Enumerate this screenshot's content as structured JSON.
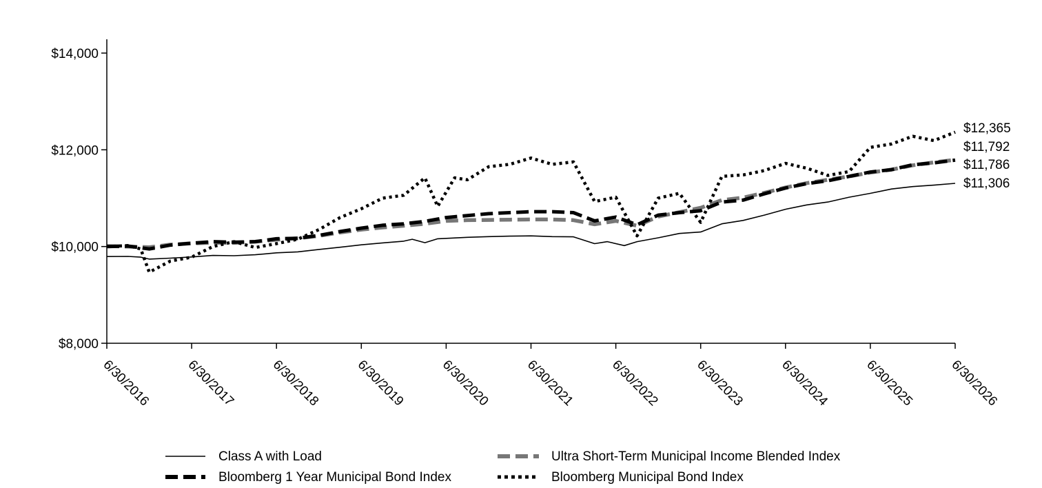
{
  "chart_data": {
    "type": "line",
    "title": "",
    "xlabel": "",
    "ylabel": "",
    "ylim": [
      8000,
      14000
    ],
    "yticks": [
      "$8,000",
      "$10,000",
      "$12,000",
      "$14,000"
    ],
    "ytick_values": [
      8000,
      10000,
      12000,
      14000
    ],
    "xticks": [
      "6/30/2016",
      "6/30/2017",
      "6/30/2018",
      "6/30/2019",
      "6/30/2020",
      "6/30/2021",
      "6/30/2022",
      "6/30/2023",
      "6/30/2024",
      "6/30/2025",
      "6/30/2026"
    ],
    "xlim": [
      2016.5,
      2026.5
    ],
    "grid": false,
    "legend_position": "bottom",
    "series": [
      {
        "name": "Class A with Load",
        "style": "solid-thin",
        "color": "#000000",
        "end_label": "$11,306",
        "points": [
          [
            2016.5,
            9793
          ],
          [
            2016.75,
            9796
          ],
          [
            2016.9,
            9780
          ],
          [
            2017.0,
            9740
          ],
          [
            2017.25,
            9760
          ],
          [
            2017.5,
            9785
          ],
          [
            2017.75,
            9815
          ],
          [
            2018.0,
            9810
          ],
          [
            2018.25,
            9830
          ],
          [
            2018.5,
            9870
          ],
          [
            2018.75,
            9890
          ],
          [
            2019.0,
            9940
          ],
          [
            2019.25,
            9985
          ],
          [
            2019.5,
            10035
          ],
          [
            2019.75,
            10075
          ],
          [
            2020.0,
            10110
          ],
          [
            2020.1,
            10150
          ],
          [
            2020.25,
            10080
          ],
          [
            2020.4,
            10160
          ],
          [
            2020.75,
            10190
          ],
          [
            2021.0,
            10205
          ],
          [
            2021.25,
            10215
          ],
          [
            2021.5,
            10220
          ],
          [
            2021.75,
            10205
          ],
          [
            2022.0,
            10200
          ],
          [
            2022.25,
            10060
          ],
          [
            2022.4,
            10100
          ],
          [
            2022.6,
            10020
          ],
          [
            2022.75,
            10100
          ],
          [
            2023.0,
            10180
          ],
          [
            2023.25,
            10270
          ],
          [
            2023.5,
            10300
          ],
          [
            2023.75,
            10470
          ],
          [
            2024.0,
            10540
          ],
          [
            2024.25,
            10650
          ],
          [
            2024.5,
            10770
          ],
          [
            2024.75,
            10860
          ],
          [
            2025.0,
            10920
          ],
          [
            2025.25,
            11020
          ],
          [
            2025.5,
            11100
          ],
          [
            2025.75,
            11190
          ],
          [
            2026.0,
            11240
          ],
          [
            2026.25,
            11270
          ],
          [
            2026.5,
            11306
          ]
        ]
      },
      {
        "name": "Ultra Short-Term Municipal Income Blended Index",
        "style": "dashed-gray",
        "color": "#777777",
        "end_label": "$11,792",
        "points": [
          [
            2016.5,
            10010
          ],
          [
            2016.75,
            10000
          ],
          [
            2017.0,
            9985
          ],
          [
            2017.25,
            10040
          ],
          [
            2017.5,
            10065
          ],
          [
            2017.75,
            10080
          ],
          [
            2018.0,
            10075
          ],
          [
            2018.25,
            10100
          ],
          [
            2018.5,
            10140
          ],
          [
            2018.75,
            10170
          ],
          [
            2019.0,
            10220
          ],
          [
            2019.25,
            10290
          ],
          [
            2019.5,
            10350
          ],
          [
            2019.75,
            10395
          ],
          [
            2020.0,
            10430
          ],
          [
            2020.25,
            10470
          ],
          [
            2020.5,
            10530
          ],
          [
            2020.75,
            10545
          ],
          [
            2021.0,
            10550
          ],
          [
            2021.25,
            10555
          ],
          [
            2021.5,
            10560
          ],
          [
            2021.75,
            10560
          ],
          [
            2022.0,
            10545
          ],
          [
            2022.25,
            10460
          ],
          [
            2022.5,
            10530
          ],
          [
            2022.75,
            10430
          ],
          [
            2023.0,
            10620
          ],
          [
            2023.25,
            10710
          ],
          [
            2023.5,
            10800
          ],
          [
            2023.75,
            10960
          ],
          [
            2024.0,
            11010
          ],
          [
            2024.25,
            11110
          ],
          [
            2024.5,
            11220
          ],
          [
            2024.75,
            11310
          ],
          [
            2025.0,
            11380
          ],
          [
            2025.25,
            11450
          ],
          [
            2025.5,
            11530
          ],
          [
            2025.75,
            11590
          ],
          [
            2026.0,
            11680
          ],
          [
            2026.25,
            11740
          ],
          [
            2026.5,
            11792
          ]
        ]
      },
      {
        "name": "Bloomberg 1 Year Municipal Bond Index",
        "style": "dashed-black",
        "color": "#000000",
        "end_label": "$11,786",
        "points": [
          [
            2016.5,
            10000
          ],
          [
            2016.75,
            10010
          ],
          [
            2017.0,
            9950
          ],
          [
            2017.25,
            10030
          ],
          [
            2017.5,
            10070
          ],
          [
            2017.75,
            10100
          ],
          [
            2018.0,
            10090
          ],
          [
            2018.25,
            10100
          ],
          [
            2018.5,
            10160
          ],
          [
            2018.75,
            10170
          ],
          [
            2019.0,
            10230
          ],
          [
            2019.25,
            10310
          ],
          [
            2019.5,
            10380
          ],
          [
            2019.75,
            10440
          ],
          [
            2020.0,
            10470
          ],
          [
            2020.25,
            10520
          ],
          [
            2020.5,
            10600
          ],
          [
            2020.75,
            10640
          ],
          [
            2021.0,
            10680
          ],
          [
            2021.25,
            10700
          ],
          [
            2021.5,
            10720
          ],
          [
            2021.75,
            10720
          ],
          [
            2022.0,
            10700
          ],
          [
            2022.25,
            10530
          ],
          [
            2022.5,
            10610
          ],
          [
            2022.75,
            10450
          ],
          [
            2023.0,
            10650
          ],
          [
            2023.25,
            10700
          ],
          [
            2023.5,
            10740
          ],
          [
            2023.75,
            10920
          ],
          [
            2024.0,
            10960
          ],
          [
            2024.25,
            11090
          ],
          [
            2024.5,
            11210
          ],
          [
            2024.75,
            11300
          ],
          [
            2025.0,
            11360
          ],
          [
            2025.25,
            11450
          ],
          [
            2025.5,
            11540
          ],
          [
            2025.75,
            11590
          ],
          [
            2026.0,
            11690
          ],
          [
            2026.25,
            11730
          ],
          [
            2026.5,
            11786
          ]
        ]
      },
      {
        "name": "Bloomberg Municipal Bond Index",
        "style": "dotted-black",
        "color": "#000000",
        "end_label": "$12,365",
        "points": [
          [
            2016.5,
            10000
          ],
          [
            2016.75,
            10020
          ],
          [
            2016.9,
            9950
          ],
          [
            2017.0,
            9470
          ],
          [
            2017.25,
            9700
          ],
          [
            2017.5,
            9780
          ],
          [
            2017.75,
            10000
          ],
          [
            2018.0,
            10100
          ],
          [
            2018.25,
            9980
          ],
          [
            2018.5,
            10060
          ],
          [
            2018.75,
            10150
          ],
          [
            2019.0,
            10350
          ],
          [
            2019.25,
            10600
          ],
          [
            2019.5,
            10780
          ],
          [
            2019.75,
            11000
          ],
          [
            2020.0,
            11060
          ],
          [
            2020.25,
            11420
          ],
          [
            2020.4,
            10830
          ],
          [
            2020.6,
            11420
          ],
          [
            2020.75,
            11380
          ],
          [
            2021.0,
            11650
          ],
          [
            2021.25,
            11700
          ],
          [
            2021.5,
            11830
          ],
          [
            2021.75,
            11700
          ],
          [
            2022.0,
            11750
          ],
          [
            2022.25,
            10930
          ],
          [
            2022.5,
            11020
          ],
          [
            2022.75,
            10220
          ],
          [
            2023.0,
            11000
          ],
          [
            2023.25,
            11100
          ],
          [
            2023.5,
            10500
          ],
          [
            2023.75,
            11450
          ],
          [
            2024.0,
            11480
          ],
          [
            2024.25,
            11570
          ],
          [
            2024.5,
            11720
          ],
          [
            2024.75,
            11620
          ],
          [
            2025.0,
            11470
          ],
          [
            2025.25,
            11550
          ],
          [
            2025.5,
            12050
          ],
          [
            2025.75,
            12120
          ],
          [
            2026.0,
            12280
          ],
          [
            2026.25,
            12190
          ],
          [
            2026.5,
            12365
          ]
        ]
      }
    ]
  }
}
